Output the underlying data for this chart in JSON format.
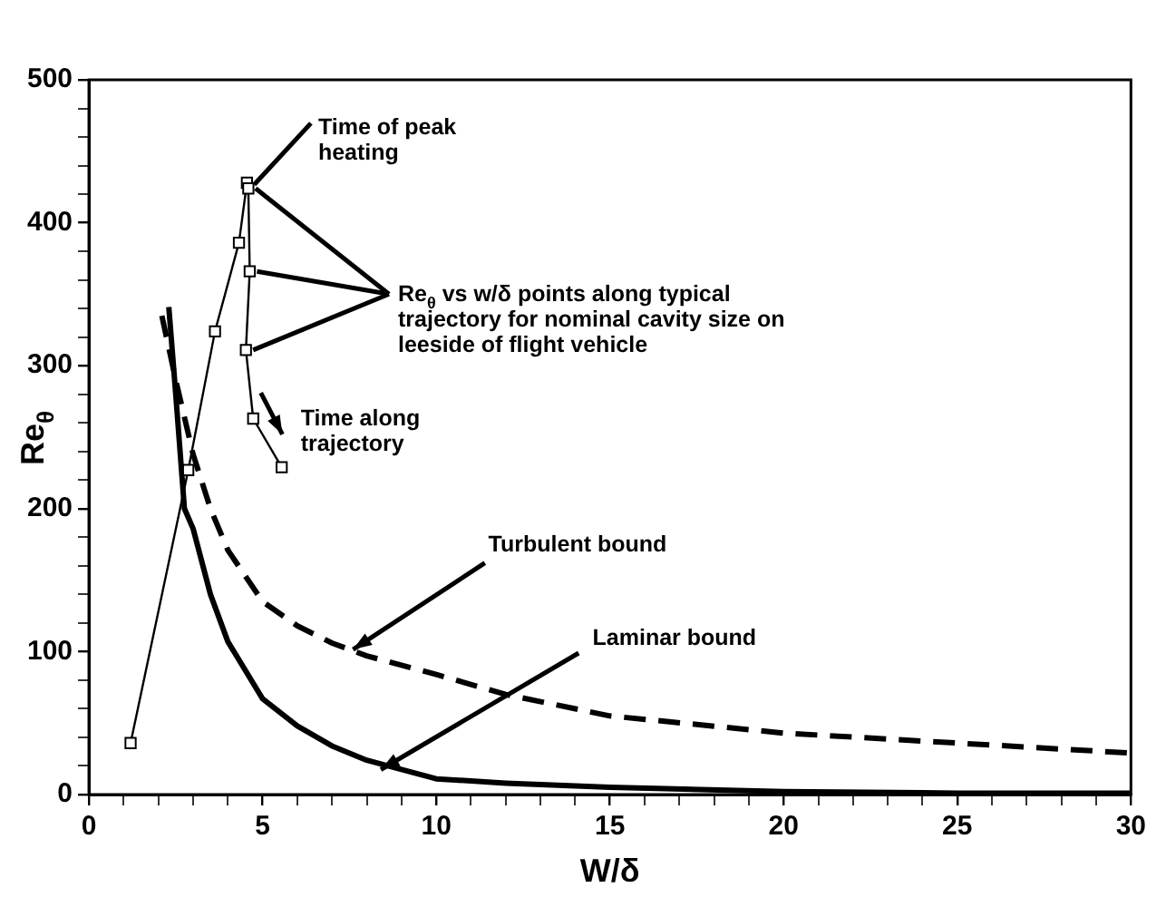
{
  "chart_data": {
    "type": "line",
    "xlabel": "W/δ",
    "ylabel": "Re$_{θ}$",
    "xlim": [
      0,
      30
    ],
    "xticks": [
      0,
      {
        "value": 1,
        "label": null
      },
      {
        "value": 2,
        "label": null
      },
      {
        "value": 3,
        "label": null
      },
      {
        "value": 4,
        "label": null
      },
      5,
      {
        "value": 6,
        "label": null
      },
      {
        "value": 7,
        "label": null
      },
      {
        "value": 8,
        "label": null
      },
      {
        "value": 9,
        "label": null
      },
      10,
      {
        "value": 11,
        "label": null
      },
      {
        "value": 12,
        "label": null
      },
      {
        "value": 13,
        "label": null
      },
      {
        "value": 14,
        "label": null
      },
      15,
      {
        "value": 16,
        "label": null
      },
      {
        "value": 17,
        "label": null
      },
      {
        "value": 18,
        "label": null
      },
      {
        "value": 19,
        "label": null
      },
      20,
      {
        "value": 21,
        "label": null
      },
      {
        "value": 22,
        "label": null
      },
      {
        "value": 23,
        "label": null
      },
      {
        "value": 24,
        "label": null
      },
      25,
      {
        "value": 26,
        "label": null
      },
      {
        "value": 27,
        "label": null
      },
      {
        "value": 28,
        "label": null
      },
      {
        "value": 29,
        "label": null
      },
      30
    ],
    "ylim": [
      0,
      500
    ],
    "yticks": [
      0,
      {
        "value": 20,
        "label": null
      },
      {
        "value": 40,
        "label": null
      },
      {
        "value": 60,
        "label": null
      },
      {
        "value": 80,
        "label": null
      },
      100,
      {
        "value": 120,
        "label": null
      },
      {
        "value": 140,
        "label": null
      },
      {
        "value": 160,
        "label": null
      },
      {
        "value": 180,
        "label": null
      },
      200,
      {
        "value": 220,
        "label": null
      },
      {
        "value": 240,
        "label": null
      },
      {
        "value": 260,
        "label": null
      },
      {
        "value": 280,
        "label": null
      },
      300,
      {
        "value": 320,
        "label": null
      },
      {
        "value": 340,
        "label": null
      },
      {
        "value": 360,
        "label": null
      },
      {
        "value": 380,
        "label": null
      },
      400,
      {
        "value": 420,
        "label": null
      },
      {
        "value": 440,
        "label": null
      },
      {
        "value": 460,
        "label": null
      },
      {
        "value": 480,
        "label": null
      },
      500
    ],
    "grid": false,
    "legend": false,
    "series": [
      {
        "type": "line",
        "color": "#000000",
        "marker": "square",
        "line_style": "solid",
        "x": [
          1.2,
          2.86,
          3.63,
          4.32,
          4.55,
          4.59,
          4.63,
          4.52,
          4.73,
          5.55
        ],
        "values": [
          36,
          227,
          324,
          386,
          428,
          424,
          366,
          311,
          263,
          229
        ]
      },
      {
        "type": "line",
        "color": "#000000",
        "marker": "none",
        "line_style": "dashed",
        "x": [
          2.1,
          2.5,
          3,
          3.5,
          4,
          5,
          6,
          7,
          8,
          10,
          12,
          15,
          20,
          25,
          30
        ],
        "values": [
          335,
          290,
          238,
          200,
          171,
          135,
          118,
          106,
          97,
          84,
          70,
          55,
          43,
          36,
          29
        ]
      },
      {
        "type": "line",
        "color": "#000000",
        "marker": "none",
        "line_style": "solid",
        "x": [
          2.3,
          2.5,
          2.75,
          3,
          3.5,
          4,
          5,
          6,
          7,
          8,
          10,
          12,
          15,
          20,
          25,
          30
        ],
        "values": [
          341,
          280,
          200,
          186,
          140,
          107,
          67,
          48,
          34,
          24,
          11,
          8,
          5,
          2,
          1,
          1
        ]
      }
    ],
    "annotations": [
      {
        "text": "Time of peak heating",
        "x": 4.55,
        "y": 428
      },
      {
        "text": "Re$_{θ}$ vs w/δ points along typical trajectory for nominal cavity size on leeside of flight vehicle",
        "x": 4.63,
        "y": 366
      },
      "Time along trajectory",
      {
        "text": "Turbulent bound",
        "x": 7.5,
        "y": 104
      },
      {
        "text": "Laminar bound",
        "x": 8.3,
        "y": 20
      }
    ]
  }
}
